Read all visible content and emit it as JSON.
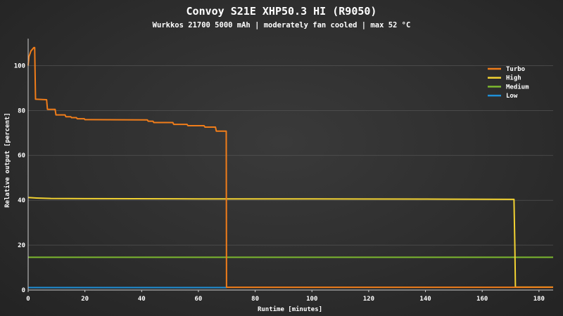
{
  "chart_data": {
    "type": "line",
    "title": "Convoy S21E XHP50.3 HI (R9050)",
    "subtitle": "Wurkkos 21700 5000 mAh | moderately fan cooled | max 52 °C",
    "xlabel": "Runtime [minutes]",
    "ylabel": "Relative output [percent]",
    "xlim": [
      0,
      185
    ],
    "ylim": [
      0,
      112
    ],
    "xticks": [
      0,
      20,
      40,
      60,
      80,
      100,
      120,
      140,
      160,
      180
    ],
    "yticks": [
      0,
      20,
      40,
      60,
      80,
      100
    ],
    "grid": "horizontal",
    "legend_position": "top-right",
    "series": [
      {
        "name": "Turbo",
        "color": "#f07d1a",
        "points": [
          [
            0,
            100
          ],
          [
            0.3,
            104
          ],
          [
            1,
            106.5
          ],
          [
            2,
            108
          ],
          [
            2.3,
            108
          ],
          [
            2.6,
            85
          ],
          [
            6.5,
            84.8
          ],
          [
            6.8,
            80.5
          ],
          [
            9.5,
            80.5
          ],
          [
            9.8,
            78
          ],
          [
            13,
            78
          ],
          [
            13.3,
            77.2
          ],
          [
            15,
            77.2
          ],
          [
            15.3,
            76.8
          ],
          [
            17,
            76.8
          ],
          [
            17.3,
            76.3
          ],
          [
            19.8,
            76.3
          ],
          [
            20,
            75.9
          ],
          [
            42,
            75.8
          ],
          [
            42.3,
            75.2
          ],
          [
            44,
            75.2
          ],
          [
            44.3,
            74.6
          ],
          [
            51,
            74.6
          ],
          [
            51.3,
            73.8
          ],
          [
            56,
            73.8
          ],
          [
            56.3,
            73.2
          ],
          [
            62,
            73.2
          ],
          [
            62.3,
            72.6
          ],
          [
            66,
            72.6
          ],
          [
            66.3,
            70.8
          ],
          [
            69.8,
            70.8
          ],
          [
            69.9,
            1.2
          ],
          [
            185,
            1.2
          ]
        ]
      },
      {
        "name": "High",
        "color": "#f2d232",
        "points": [
          [
            0,
            41.2
          ],
          [
            3,
            41
          ],
          [
            8,
            40.8
          ],
          [
            20,
            40.7
          ],
          [
            60,
            40.6
          ],
          [
            100,
            40.6
          ],
          [
            140,
            40.5
          ],
          [
            171.2,
            40.4
          ],
          [
            171.5,
            20
          ],
          [
            171.7,
            1.3
          ],
          [
            185,
            1.3
          ]
        ]
      },
      {
        "name": "Medium",
        "color": "#7cb82f",
        "points": [
          [
            0,
            14.6
          ],
          [
            185,
            14.6
          ]
        ]
      },
      {
        "name": "Low",
        "color": "#1f8fd6",
        "points": [
          [
            0,
            1.1
          ],
          [
            70,
            1.1
          ]
        ]
      }
    ]
  }
}
